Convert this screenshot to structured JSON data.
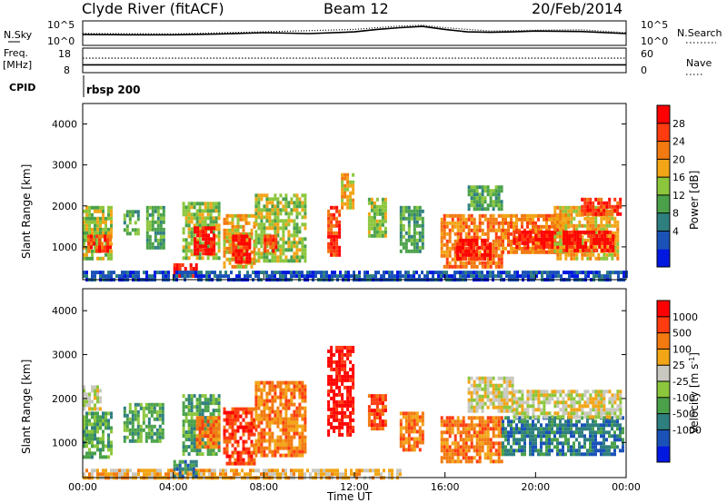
{
  "header": {
    "station": "Clyde River (fitACF)",
    "beam": "Beam 12",
    "date": "20/Feb/2014"
  },
  "chart_data": [
    {
      "type": "line",
      "panel": "nsky",
      "left_label": "N.Sky",
      "right_label": "N.Search",
      "left_ticks": [
        "10^5",
        "10^0"
      ],
      "right_ticks": [
        "10^5",
        "10^0"
      ],
      "ylim": [
        0,
        5
      ],
      "scale": "log",
      "x_range": [
        0,
        24
      ],
      "series": [
        {
          "style": "solid",
          "values": [
            [
              0,
              2.2
            ],
            [
              2,
              2.1
            ],
            [
              4,
              2.1
            ],
            [
              6,
              2.3
            ],
            [
              8,
              2.6
            ],
            [
              10,
              2.4
            ],
            [
              12,
              2.8
            ],
            [
              13,
              3.4
            ],
            [
              14,
              3.8
            ],
            [
              15,
              4.1
            ],
            [
              16,
              3.4
            ],
            [
              17,
              2.8
            ],
            [
              18,
              2.7
            ],
            [
              19,
              2.8
            ],
            [
              20,
              3.0
            ],
            [
              22,
              2.9
            ],
            [
              24,
              2.4
            ]
          ]
        },
        {
          "style": "dotted",
          "values": [
            [
              0,
              2.4
            ],
            [
              4,
              2.3
            ],
            [
              8,
              2.8
            ],
            [
              12,
              3.4
            ],
            [
              13,
              3.8
            ],
            [
              14,
              4.2
            ],
            [
              15,
              4.4
            ],
            [
              16,
              3.8
            ],
            [
              18,
              3.0
            ],
            [
              20,
              3.2
            ],
            [
              22,
              3.3
            ],
            [
              24,
              2.6
            ]
          ]
        }
      ]
    },
    {
      "type": "line",
      "panel": "freq",
      "left_label": "Freq.",
      "left_unit": "[MHz]",
      "right_label": "Nave",
      "left_ticks": [
        "18",
        "8"
      ],
      "right_ticks": [
        "60",
        "0"
      ],
      "series": [
        {
          "style": "solid",
          "axis": "left",
          "values": [
            [
              0,
              11
            ],
            [
              24,
              11
            ]
          ]
        },
        {
          "style": "dotted",
          "axis": "right",
          "values": [
            [
              0,
              38
            ],
            [
              24,
              38
            ]
          ]
        }
      ]
    },
    {
      "type": "table",
      "panel": "cpid",
      "label": "CPID",
      "entries": [
        {
          "start_hour": 0,
          "text": "rbsp 200"
        }
      ]
    },
    {
      "type": "heatmap",
      "panel": "power",
      "ylabel": "Slant Range [km]",
      "xlim": [
        0,
        24
      ],
      "ylim": [
        200,
        4500
      ],
      "y_ticks": [
        1000,
        2000,
        3000,
        4000
      ],
      "colorbar": {
        "label": "Power [dB]",
        "ticks": [
          "28",
          "24",
          "20",
          "16",
          "12",
          "8",
          "4"
        ],
        "colors": [
          "#0018e0",
          "#1a52b8",
          "#2f7f7f",
          "#4aa14a",
          "#8cc63c",
          "#f2a516",
          "#f27a10",
          "#ff3b10",
          "#ff0000"
        ]
      },
      "patches": [
        {
          "t0": 0.0,
          "t1": 1.3,
          "r0": 700,
          "r1": 2000,
          "level": 4
        },
        {
          "t0": 0.2,
          "t1": 1.2,
          "r0": 900,
          "r1": 1300,
          "level": 7
        },
        {
          "t0": 1.8,
          "t1": 2.5,
          "r0": 1300,
          "r1": 1900,
          "level": 3
        },
        {
          "t0": 2.8,
          "t1": 3.6,
          "r0": 1000,
          "r1": 2000,
          "level": 3
        },
        {
          "t0": 4.0,
          "t1": 5.0,
          "r0": 300,
          "r1": 600,
          "level": 8
        },
        {
          "t0": 4.4,
          "t1": 6.0,
          "r0": 700,
          "r1": 2100,
          "level": 4
        },
        {
          "t0": 4.9,
          "t1": 5.8,
          "r0": 800,
          "r1": 1500,
          "level": 8
        },
        {
          "t0": 6.2,
          "t1": 7.6,
          "r0": 500,
          "r1": 1800,
          "level": 5
        },
        {
          "t0": 6.6,
          "t1": 7.4,
          "r0": 600,
          "r1": 1300,
          "level": 8
        },
        {
          "t0": 7.6,
          "t1": 9.8,
          "r0": 700,
          "r1": 2300,
          "level": 4
        },
        {
          "t0": 8.0,
          "t1": 8.6,
          "r0": 900,
          "r1": 1300,
          "level": 7
        },
        {
          "t0": 10.8,
          "t1": 11.4,
          "r0": 800,
          "r1": 2000,
          "level": 7
        },
        {
          "t0": 11.4,
          "t1": 12.0,
          "r0": 2000,
          "r1": 2800,
          "level": 5
        },
        {
          "t0": 12.6,
          "t1": 13.4,
          "r0": 1300,
          "r1": 2200,
          "level": 4
        },
        {
          "t0": 14.0,
          "t1": 15.0,
          "r0": 900,
          "r1": 2000,
          "level": 3
        },
        {
          "t0": 15.8,
          "t1": 18.5,
          "r0": 500,
          "r1": 1800,
          "level": 6
        },
        {
          "t0": 16.5,
          "t1": 18.0,
          "r0": 700,
          "r1": 1200,
          "level": 8
        },
        {
          "t0": 18.5,
          "t1": 21.5,
          "r0": 900,
          "r1": 1800,
          "level": 6
        },
        {
          "t0": 19.0,
          "t1": 21.0,
          "r0": 1000,
          "r1": 1400,
          "level": 8
        },
        {
          "t0": 20.8,
          "t1": 23.6,
          "r0": 700,
          "r1": 2000,
          "level": 5
        },
        {
          "t0": 21.2,
          "t1": 23.4,
          "r0": 900,
          "r1": 1400,
          "level": 8
        },
        {
          "t0": 22.0,
          "t1": 23.8,
          "r0": 1800,
          "r1": 2200,
          "level": 7
        },
        {
          "t0": 17.0,
          "t1": 18.5,
          "r0": 1900,
          "r1": 2500,
          "level": 3
        },
        {
          "t0": 0.0,
          "t1": 24.0,
          "r0": 220,
          "r1": 420,
          "level": 1
        }
      ]
    },
    {
      "type": "heatmap",
      "panel": "velocity",
      "ylabel": "Slant Range [km]",
      "xlabel": "Time UT",
      "xlim": [
        0,
        24
      ],
      "ylim": [
        200,
        4500
      ],
      "y_ticks": [
        1000,
        2000,
        3000,
        4000
      ],
      "x_ticks": [
        "00:00",
        "04:00",
        "08:00",
        "12:00",
        "16:00",
        "20:00",
        "00:00"
      ],
      "colorbar": {
        "label": "Velocity [m s^-1]",
        "ticks": [
          "1000",
          "500",
          "100",
          "25",
          "-25",
          "-100",
          "-500",
          "-1000"
        ],
        "colors": [
          "#0018e0",
          "#1a52b8",
          "#2f7f7f",
          "#4aa14a",
          "#8cc63c",
          "#c8c8c0",
          "#f2a516",
          "#f27a10",
          "#ff3b10",
          "#ff0000"
        ]
      },
      "patches": [
        {
          "t0": 0.0,
          "t1": 1.3,
          "r0": 700,
          "r1": 1700,
          "level": 3
        },
        {
          "t0": 0.0,
          "t1": 0.8,
          "r0": 1800,
          "r1": 2300,
          "level": 5
        },
        {
          "t0": 1.8,
          "t1": 3.6,
          "r0": 1000,
          "r1": 1900,
          "level": 3
        },
        {
          "t0": 4.4,
          "t1": 6.0,
          "r0": 700,
          "r1": 2100,
          "level": 3
        },
        {
          "t0": 5.0,
          "t1": 6.0,
          "r0": 900,
          "r1": 1600,
          "level": 7
        },
        {
          "t0": 6.2,
          "t1": 7.6,
          "r0": 500,
          "r1": 1800,
          "level": 8
        },
        {
          "t0": 7.6,
          "t1": 9.8,
          "r0": 700,
          "r1": 2400,
          "level": 7
        },
        {
          "t0": 10.8,
          "t1": 12.0,
          "r0": 1200,
          "r1": 3200,
          "level": 9
        },
        {
          "t0": 12.6,
          "t1": 13.4,
          "r0": 1300,
          "r1": 2100,
          "level": 8
        },
        {
          "t0": 14.0,
          "t1": 15.0,
          "r0": 800,
          "r1": 1700,
          "level": 7
        },
        {
          "t0": 15.8,
          "t1": 18.5,
          "r0": 600,
          "r1": 1600,
          "level": 7
        },
        {
          "t0": 17.0,
          "t1": 19.0,
          "r0": 1700,
          "r1": 2500,
          "level": 5
        },
        {
          "t0": 18.5,
          "t1": 23.8,
          "r0": 700,
          "r1": 1600,
          "level": 2
        },
        {
          "t0": 19.0,
          "t1": 23.8,
          "r0": 1600,
          "r1": 2200,
          "level": 5
        },
        {
          "t0": 0.0,
          "t1": 14.0,
          "r0": 220,
          "r1": 400,
          "level": 6
        },
        {
          "t0": 4.0,
          "t1": 5.0,
          "r0": 200,
          "r1": 600,
          "level": 2
        }
      ]
    }
  ]
}
